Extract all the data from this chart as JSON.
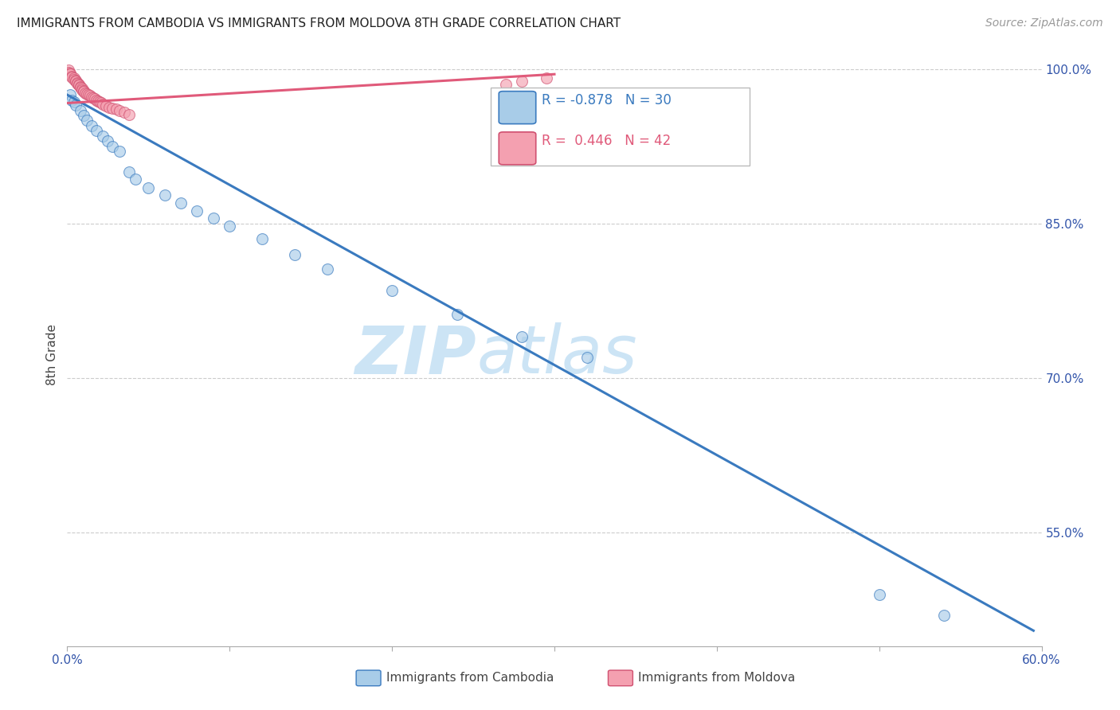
{
  "title": "IMMIGRANTS FROM CAMBODIA VS IMMIGRANTS FROM MOLDOVA 8TH GRADE CORRELATION CHART",
  "source": "Source: ZipAtlas.com",
  "xlabel_cambodia": "Immigrants from Cambodia",
  "xlabel_moldova": "Immigrants from Moldova",
  "ylabel": "8th Grade",
  "xlim": [
    0.0,
    0.6
  ],
  "ylim": [
    0.44,
    1.005
  ],
  "xticks": [
    0.0,
    0.1,
    0.2,
    0.3,
    0.4,
    0.5,
    0.6
  ],
  "xticklabels": [
    "0.0%",
    "",
    "",
    "",
    "",
    "",
    "60.0%"
  ],
  "yticks_right": [
    1.0,
    0.85,
    0.7,
    0.55
  ],
  "yticklabels_right": [
    "100.0%",
    "85.0%",
    "70.0%",
    "55.0%"
  ],
  "R_cambodia": -0.878,
  "N_cambodia": 30,
  "R_moldova": 0.446,
  "N_moldova": 42,
  "color_cambodia": "#a8cce8",
  "color_moldova": "#f4a0b0",
  "color_line_cambodia": "#3a7abf",
  "color_line_moldova": "#e05a7a",
  "watermark_zip": "ZIP",
  "watermark_atlas": "atlas",
  "watermark_color": "#cce4f5",
  "cambodia_x": [
    0.002,
    0.003,
    0.004,
    0.005,
    0.008,
    0.01,
    0.012,
    0.015,
    0.018,
    0.022,
    0.025,
    0.028,
    0.032,
    0.038,
    0.042,
    0.05,
    0.06,
    0.07,
    0.08,
    0.09,
    0.1,
    0.12,
    0.14,
    0.16,
    0.2,
    0.24,
    0.28,
    0.32,
    0.5,
    0.54
  ],
  "cambodia_y": [
    0.975,
    0.97,
    0.968,
    0.965,
    0.96,
    0.955,
    0.95,
    0.945,
    0.94,
    0.935,
    0.93,
    0.925,
    0.92,
    0.9,
    0.893,
    0.885,
    0.878,
    0.87,
    0.862,
    0.855,
    0.848,
    0.835,
    0.82,
    0.806,
    0.785,
    0.762,
    0.74,
    0.72,
    0.49,
    0.47
  ],
  "cambodia_line_x0": 0.0,
  "cambodia_line_y0": 0.975,
  "cambodia_line_x1": 0.595,
  "cambodia_line_y1": 0.455,
  "moldova_x": [
    0.001,
    0.001,
    0.002,
    0.002,
    0.003,
    0.003,
    0.004,
    0.004,
    0.005,
    0.005,
    0.006,
    0.006,
    0.007,
    0.007,
    0.008,
    0.008,
    0.009,
    0.009,
    0.01,
    0.01,
    0.011,
    0.012,
    0.013,
    0.014,
    0.015,
    0.016,
    0.017,
    0.018,
    0.019,
    0.02,
    0.021,
    0.022,
    0.024,
    0.026,
    0.028,
    0.03,
    0.032,
    0.035,
    0.038,
    0.27,
    0.28,
    0.295
  ],
  "moldova_y": [
    0.999,
    0.997,
    0.996,
    0.995,
    0.993,
    0.992,
    0.991,
    0.99,
    0.989,
    0.988,
    0.987,
    0.986,
    0.985,
    0.984,
    0.983,
    0.982,
    0.981,
    0.98,
    0.979,
    0.978,
    0.977,
    0.976,
    0.975,
    0.974,
    0.973,
    0.972,
    0.971,
    0.97,
    0.969,
    0.968,
    0.967,
    0.966,
    0.964,
    0.963,
    0.962,
    0.961,
    0.96,
    0.958,
    0.956,
    0.985,
    0.988,
    0.991
  ],
  "moldova_line_x0": 0.0,
  "moldova_line_y0": 0.967,
  "moldova_line_x1": 0.3,
  "moldova_line_y1": 0.995
}
